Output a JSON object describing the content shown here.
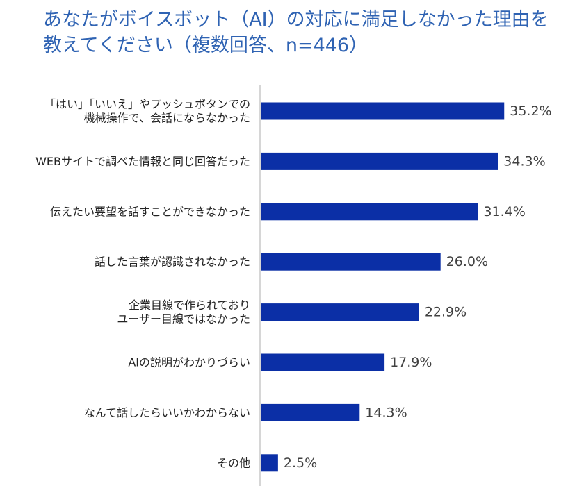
{
  "chart_data": {
    "type": "bar",
    "orientation": "horizontal",
    "title_lines": [
      "あなたがボイスボット（AI）の対応に満足しなかった理由を",
      "教えてください（複数回答、n=446）"
    ],
    "categories": [
      [
        "「はい」「いいえ」やプッシュボタンでの",
        "機械操作で、会話にならなかった"
      ],
      [
        "WEBサイトで調べた情報と同じ回答だった"
      ],
      [
        "伝えたい要望を話すことができなかった"
      ],
      [
        "話した言葉が認識されなかった"
      ],
      [
        "企業目線で作られており",
        "ユーザー目線ではなかった"
      ],
      [
        "AIの説明がわかりづらい"
      ],
      [
        "なんて話したらいいかわからない"
      ],
      [
        "その他"
      ]
    ],
    "values": [
      35.2,
      34.3,
      31.4,
      26.0,
      22.9,
      17.9,
      14.3,
      2.5
    ],
    "value_labels": [
      "35.2%",
      "34.3%",
      "31.4%",
      "26.0%",
      "22.9%",
      "17.9%",
      "14.3%",
      "2.5%"
    ],
    "bar_color": "#0b2fa6",
    "axis_color": "#c8c8c8",
    "title_color": "#2f63b3",
    "xlim": [
      0,
      40
    ],
    "grid": false,
    "legend": "none"
  }
}
